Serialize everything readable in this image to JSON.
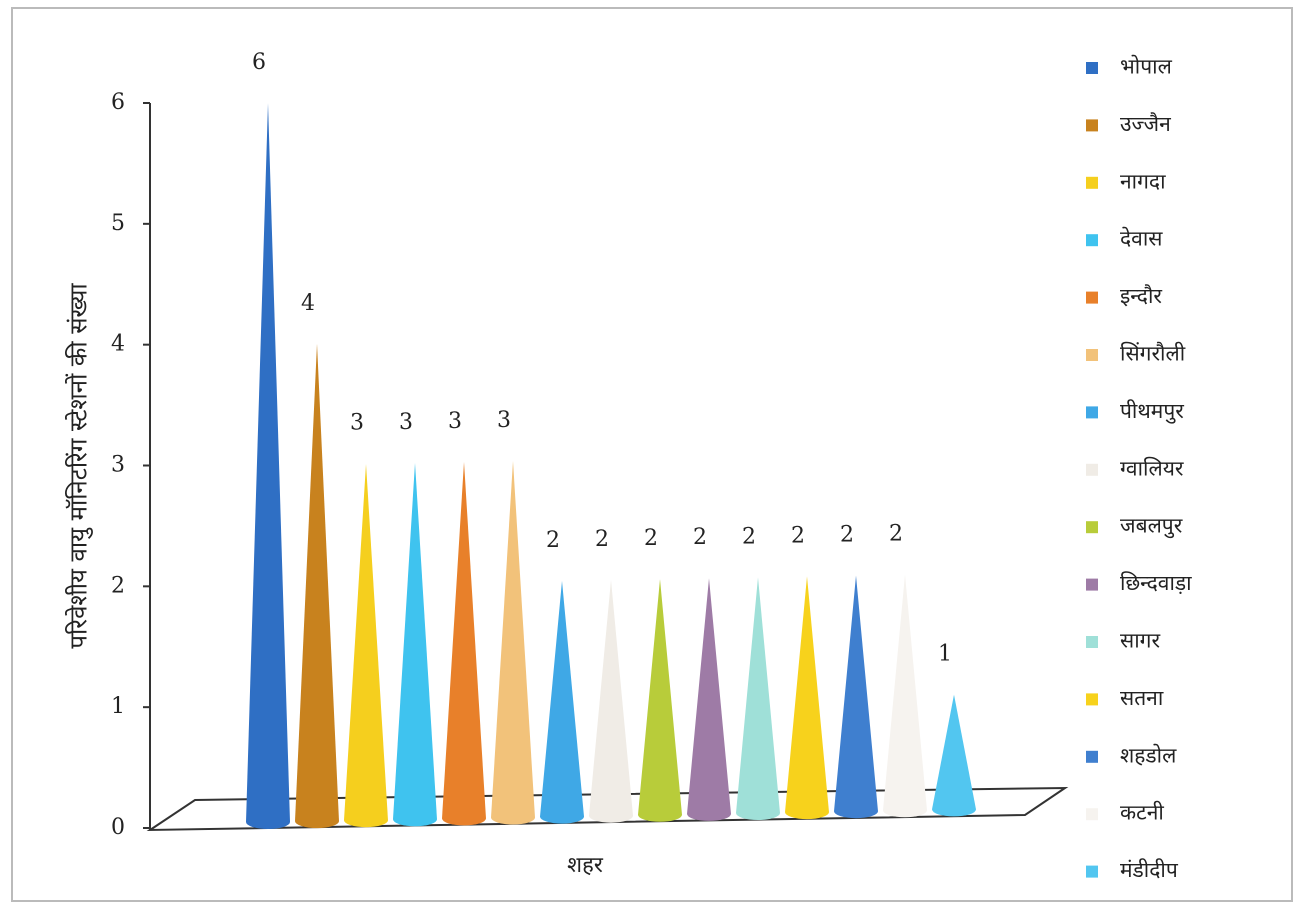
{
  "chart_data": {
    "type": "cone",
    "y_label": "परिवेशीय वायु मॉनिटरिंग स्टेशनों की संख्या",
    "x_label": "शहर",
    "categories": [
      "भोपाल",
      "उज्जैन",
      "नागदा",
      "देवास",
      "इन्दौर",
      "सिंगरौली",
      "पीथमपुर",
      "ग्वालियर",
      "जबलपुर",
      "छिन्दवाड़ा",
      "सागर",
      "सतना",
      "शहडोल",
      "कटनी",
      "मंडीदीप"
    ],
    "values": [
      6,
      4,
      3,
      3,
      3,
      3,
      2,
      2,
      2,
      2,
      2,
      2,
      2,
      2,
      1
    ],
    "colors": [
      "#2f6fc4",
      "#c8821e",
      "#f5cf1e",
      "#3fc3ef",
      "#e8802a",
      "#f2c27a",
      "#3fa8e6",
      "#f0ece6",
      "#b8cc3a",
      "#9e7ba6",
      "#9fe0d8",
      "#f7d21c",
      "#3f7fcf",
      "#f6f3ef",
      "#52c6f0"
    ],
    "ylim": [
      0,
      6
    ],
    "yticks": [
      0,
      1,
      2,
      3,
      4,
      5,
      6
    ],
    "legend": "right"
  }
}
